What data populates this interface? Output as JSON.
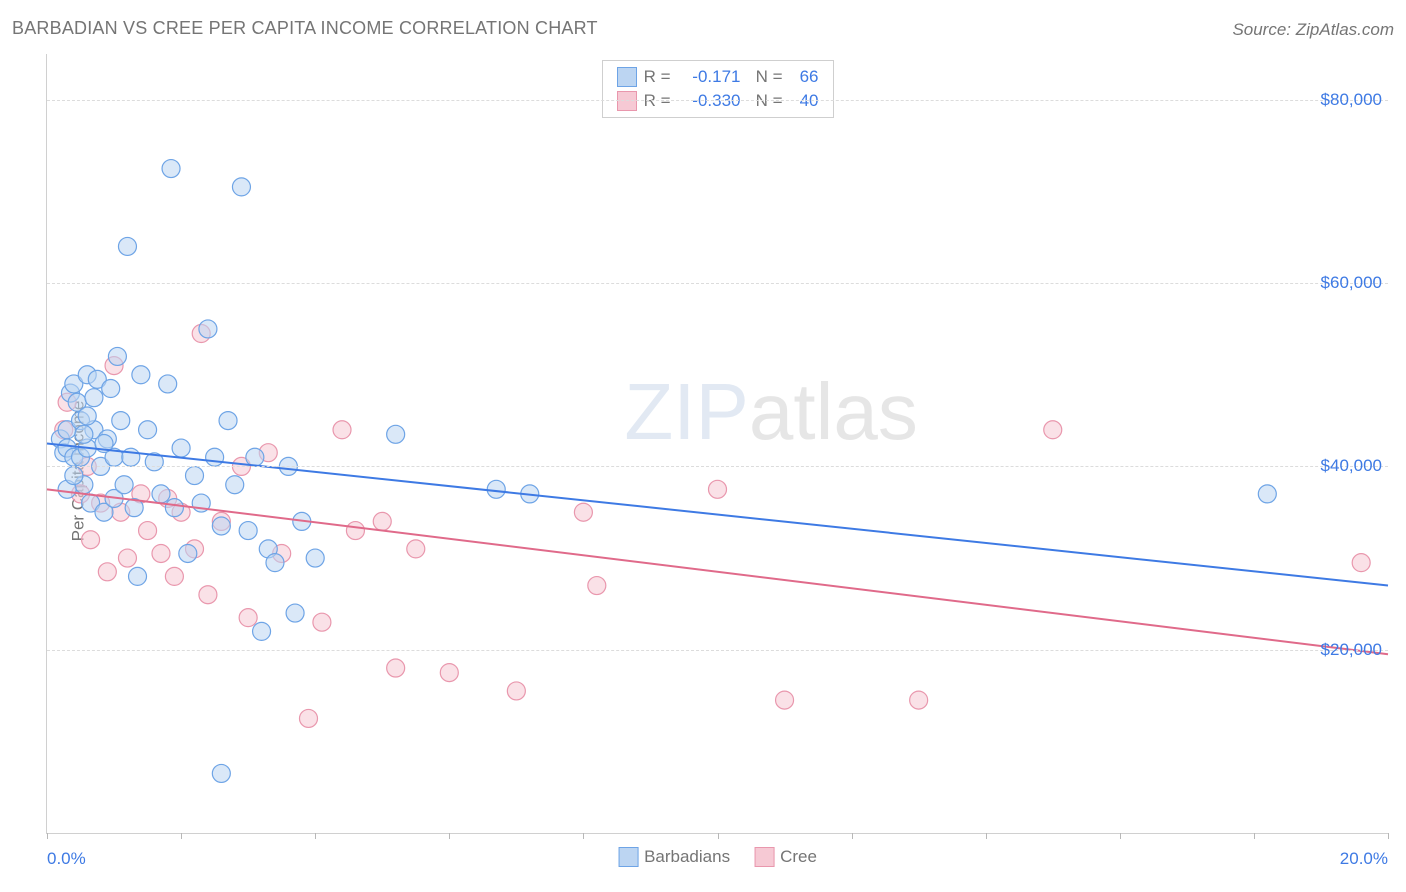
{
  "header": {
    "title": "BARBADIAN VS CREE PER CAPITA INCOME CORRELATION CHART",
    "source": "Source: ZipAtlas.com"
  },
  "watermark": {
    "left": "ZIP",
    "right": "atlas"
  },
  "chart": {
    "type": "scatter",
    "ylabel": "Per Capita Income",
    "xmin": 0.0,
    "xmax": 20.0,
    "ymin": 0.0,
    "ymax": 85000,
    "grid_color": "#dcdcdc",
    "background_color": "#ffffff",
    "axis_color": "#d0d0d0",
    "marker_radius": 9,
    "marker_opacity": 0.55,
    "line_width": 2,
    "yticks": [
      {
        "v": 20000,
        "label": "$20,000"
      },
      {
        "v": 40000,
        "label": "$40,000"
      },
      {
        "v": 60000,
        "label": "$60,000"
      },
      {
        "v": 80000,
        "label": "$80,000"
      }
    ],
    "xticks_minor": [
      0,
      2,
      4,
      6,
      8,
      10,
      12,
      14,
      16,
      18,
      20
    ],
    "xtick_labels": [
      {
        "v": 0.0,
        "label": "0.0%"
      },
      {
        "v": 20.0,
        "label": "20.0%"
      }
    ],
    "series": [
      {
        "key": "barbadians",
        "label": "Barbadians",
        "fill": "#bcd5f2",
        "stroke": "#6ea4e6",
        "line_color": "#3e7ae4",
        "R": "-0.171",
        "N": "66",
        "regression": {
          "x1": 0.0,
          "y1": 42500,
          "x2": 20.0,
          "y2": 27000
        },
        "points": [
          [
            0.2,
            43000
          ],
          [
            0.25,
            41500
          ],
          [
            0.3,
            44000
          ],
          [
            0.3,
            42000
          ],
          [
            0.35,
            48000
          ],
          [
            0.4,
            41000
          ],
          [
            0.4,
            49000
          ],
          [
            0.45,
            47000
          ],
          [
            0.5,
            45000
          ],
          [
            0.5,
            41000
          ],
          [
            0.55,
            38000
          ],
          [
            0.6,
            50000
          ],
          [
            0.6,
            42000
          ],
          [
            0.65,
            36000
          ],
          [
            0.7,
            44000
          ],
          [
            0.75,
            49500
          ],
          [
            0.8,
            40000
          ],
          [
            0.85,
            35000
          ],
          [
            0.9,
            43000
          ],
          [
            0.95,
            48500
          ],
          [
            1.0,
            41000
          ],
          [
            1.0,
            36500
          ],
          [
            1.05,
            52000
          ],
          [
            1.1,
            45000
          ],
          [
            1.15,
            38000
          ],
          [
            1.2,
            64000
          ],
          [
            1.25,
            41000
          ],
          [
            1.3,
            35500
          ],
          [
            1.35,
            28000
          ],
          [
            1.4,
            50000
          ],
          [
            1.5,
            44000
          ],
          [
            1.6,
            40500
          ],
          [
            1.7,
            37000
          ],
          [
            1.8,
            49000
          ],
          [
            1.85,
            72500
          ],
          [
            1.9,
            35500
          ],
          [
            2.0,
            42000
          ],
          [
            2.1,
            30500
          ],
          [
            2.2,
            39000
          ],
          [
            2.3,
            36000
          ],
          [
            2.4,
            55000
          ],
          [
            2.5,
            41000
          ],
          [
            2.6,
            33500
          ],
          [
            2.7,
            45000
          ],
          [
            2.8,
            38000
          ],
          [
            2.9,
            70500
          ],
          [
            3.0,
            33000
          ],
          [
            3.1,
            41000
          ],
          [
            3.2,
            22000
          ],
          [
            3.3,
            31000
          ],
          [
            3.4,
            29500
          ],
          [
            3.6,
            40000
          ],
          [
            3.7,
            24000
          ],
          [
            3.8,
            34000
          ],
          [
            4.0,
            30000
          ],
          [
            2.6,
            6500
          ],
          [
            5.2,
            43500
          ],
          [
            6.7,
            37500
          ],
          [
            7.2,
            37000
          ],
          [
            18.2,
            37000
          ],
          [
            0.3,
            37500
          ],
          [
            0.4,
            39000
          ],
          [
            0.6,
            45500
          ],
          [
            0.55,
            43500
          ],
          [
            0.7,
            47500
          ],
          [
            0.85,
            42500
          ]
        ]
      },
      {
        "key": "cree",
        "label": "Cree",
        "fill": "#f6c9d4",
        "stroke": "#e997ad",
        "line_color": "#e06a8a",
        "R": "-0.330",
        "N": "40",
        "regression": {
          "x1": 0.0,
          "y1": 37500,
          "x2": 20.0,
          "y2": 19500
        },
        "points": [
          [
            0.25,
            44000
          ],
          [
            0.3,
            47000
          ],
          [
            0.5,
            37000
          ],
          [
            0.6,
            40000
          ],
          [
            0.65,
            32000
          ],
          [
            0.8,
            36000
          ],
          [
            0.9,
            28500
          ],
          [
            1.0,
            51000
          ],
          [
            1.1,
            35000
          ],
          [
            1.2,
            30000
          ],
          [
            1.4,
            37000
          ],
          [
            1.5,
            33000
          ],
          [
            1.7,
            30500
          ],
          [
            1.8,
            36500
          ],
          [
            1.9,
            28000
          ],
          [
            2.0,
            35000
          ],
          [
            2.2,
            31000
          ],
          [
            2.3,
            54500
          ],
          [
            2.4,
            26000
          ],
          [
            2.6,
            34000
          ],
          [
            2.9,
            40000
          ],
          [
            3.0,
            23500
          ],
          [
            3.3,
            41500
          ],
          [
            3.5,
            30500
          ],
          [
            3.9,
            12500
          ],
          [
            4.1,
            23000
          ],
          [
            4.4,
            44000
          ],
          [
            4.6,
            33000
          ],
          [
            5.0,
            34000
          ],
          [
            5.2,
            18000
          ],
          [
            5.5,
            31000
          ],
          [
            6.0,
            17500
          ],
          [
            7.0,
            15500
          ],
          [
            8.0,
            35000
          ],
          [
            8.2,
            27000
          ],
          [
            10.0,
            37500
          ],
          [
            11.0,
            14500
          ],
          [
            13.0,
            14500
          ],
          [
            15.0,
            44000
          ],
          [
            19.6,
            29500
          ]
        ]
      }
    ],
    "legend_top_labels": {
      "R": "R =",
      "N": "N ="
    },
    "legend_bottom_order": [
      "barbadians",
      "cree"
    ]
  }
}
